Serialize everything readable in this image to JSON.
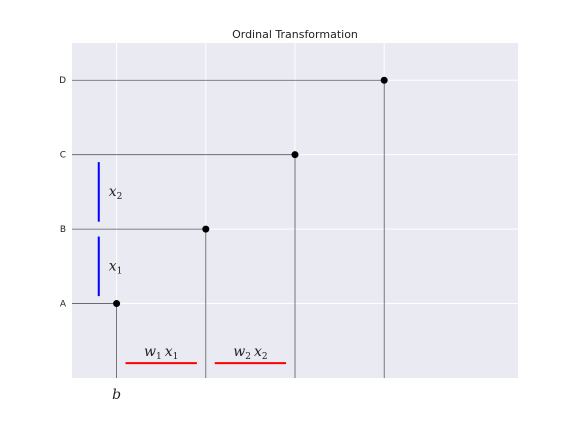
{
  "chart_data": {
    "type": "line",
    "title": "Ordinal Transformation",
    "xlabel": "",
    "ylabel": "",
    "xlim": [
      0,
      5
    ],
    "ylim": [
      0,
      4.5
    ],
    "grid": true,
    "y_categories": [
      "A",
      "B",
      "C",
      "D"
    ],
    "x_gridlines": [
      0.5,
      1.5,
      2.5,
      3.5
    ],
    "points": [
      {
        "label": "A",
        "x": 0.5,
        "y": 1
      },
      {
        "label": "B",
        "x": 1.5,
        "y": 2
      },
      {
        "label": "C",
        "x": 2.5,
        "y": 3
      },
      {
        "label": "D",
        "x": 3.5,
        "y": 4
      }
    ],
    "annotations": {
      "b": {
        "text": "b",
        "x": 0.5
      },
      "vertical_bars": [
        {
          "name": "x",
          "sub": "1",
          "x": 0.3,
          "y": [
            1.1,
            1.9
          ],
          "color": "#0000ff"
        },
        {
          "name": "x",
          "sub": "2",
          "x": 0.3,
          "y": [
            2.1,
            2.9
          ],
          "color": "#0000ff"
        }
      ],
      "horizontal_bars": [
        {
          "w": "w",
          "wsub": "1",
          "x": "x",
          "xsub": "1",
          "xr": [
            0.6,
            1.4
          ],
          "y": 0.2,
          "color": "#ff0000"
        },
        {
          "w": "w",
          "wsub": "2",
          "x": "x",
          "xsub": "2",
          "xr": [
            1.6,
            2.4
          ],
          "y": 0.2,
          "color": "#ff0000"
        }
      ]
    },
    "colors": {
      "background": "#eaeaf2",
      "grid": "#ffffff",
      "lines": "#555555",
      "points": "#000000"
    }
  }
}
